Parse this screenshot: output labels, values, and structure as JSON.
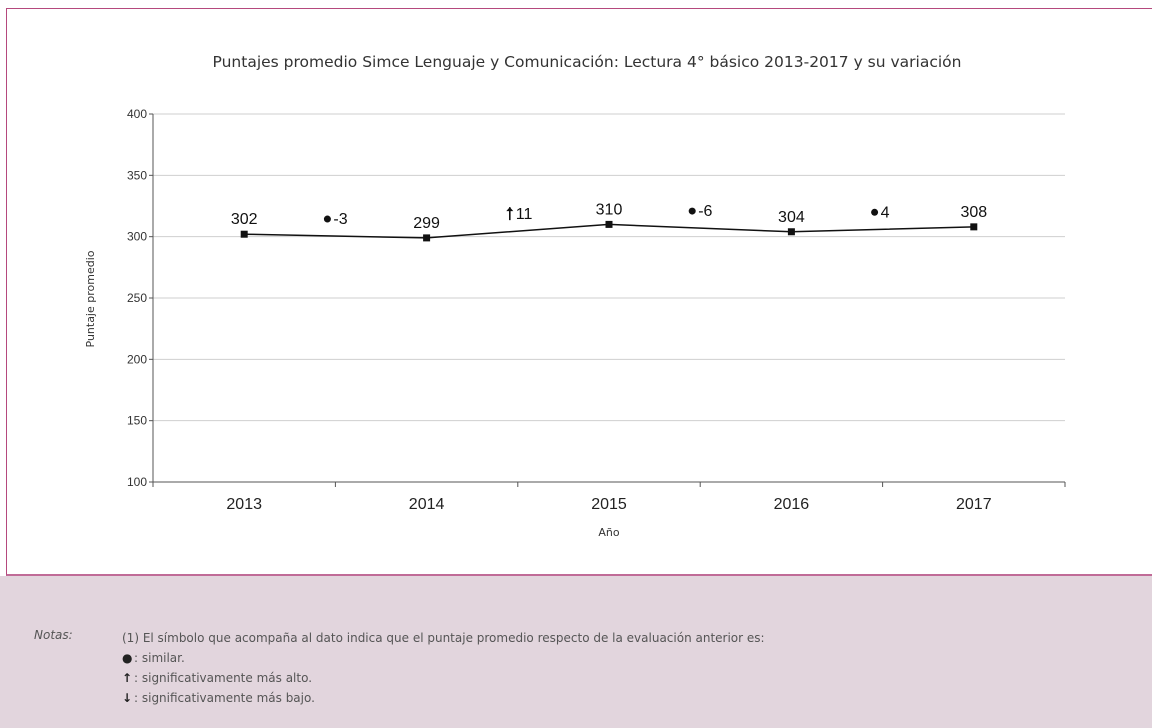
{
  "chart_data": {
    "type": "line",
    "title": "Puntajes promedio Simce Lenguaje y Comunicación: Lectura 4° básico 2013-2017 y su variación",
    "xlabel": "Año",
    "ylabel": "Puntaje promedio",
    "categories": [
      "2013",
      "2014",
      "2015",
      "2016",
      "2017"
    ],
    "series": [
      {
        "values": [
          302,
          299,
          310,
          304,
          308
        ]
      }
    ],
    "value_labels": [
      "302",
      "299",
      "310",
      "304",
      "308"
    ],
    "variations": [
      {
        "between": [
          "2013",
          "2014"
        ],
        "symbol": "similar",
        "value": "-3"
      },
      {
        "between": [
          "2014",
          "2015"
        ],
        "symbol": "up",
        "value": "11"
      },
      {
        "between": [
          "2015",
          "2016"
        ],
        "symbol": "similar",
        "value": "-6"
      },
      {
        "between": [
          "2016",
          "2017"
        ],
        "symbol": "similar",
        "value": "4"
      }
    ],
    "ylim": [
      100,
      400
    ],
    "yticks": [
      100,
      150,
      200,
      250,
      300,
      350,
      400
    ],
    "grid": true,
    "line_color": "#111111"
  },
  "notes": {
    "label": "Notas:",
    "intro": "(1) El símbolo que acompaña al dato indica que el puntaje promedio respecto de la evaluación anterior es:",
    "items": [
      {
        "symbol_icon": "dot-icon",
        "text": ": similar."
      },
      {
        "symbol_icon": "arrow-up-icon",
        "text": ": significativamente más alto."
      },
      {
        "symbol_icon": "arrow-down-icon",
        "text": ": significativamente más bajo."
      }
    ]
  },
  "colors": {
    "panel_border": "#b5497d",
    "notes_background": "#e2d5dd"
  }
}
